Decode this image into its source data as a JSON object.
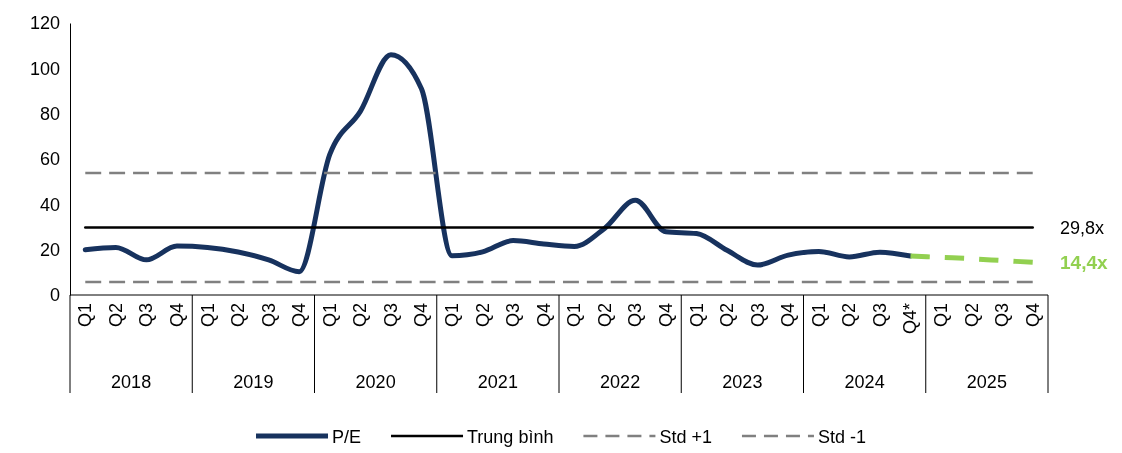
{
  "chart_data": {
    "type": "line",
    "categories": [
      "Q1",
      "Q2",
      "Q3",
      "Q4",
      "Q1",
      "Q2",
      "Q3",
      "Q4",
      "Q1",
      "Q2",
      "Q3",
      "Q4",
      "Q1",
      "Q2",
      "Q3",
      "Q4",
      "Q1",
      "Q2",
      "Q3",
      "Q4",
      "Q1",
      "Q2",
      "Q3",
      "Q4",
      "Q1",
      "Q2",
      "Q3",
      "Q4*",
      "Q1",
      "Q2",
      "Q3",
      "Q4"
    ],
    "series": [
      {
        "name": "P/E",
        "color": "#17325e",
        "line_style": "solid",
        "values": [
          20,
          21,
          15.5,
          21.6,
          21,
          19,
          15.5,
          10.3,
          62,
          81,
          106,
          91,
          17.3,
          19,
          24,
          22.5,
          21.4,
          29.5,
          41.8,
          27.9,
          27.1,
          19.7,
          13.2,
          17.6,
          19.2,
          16.8,
          18.9,
          17.2,
          null,
          null,
          null,
          null
        ]
      },
      {
        "name": "Trung bình",
        "color": "#000000",
        "line_style": "solid",
        "values": [
          29.8,
          29.8,
          29.8,
          29.8,
          29.8,
          29.8,
          29.8,
          29.8,
          29.8,
          29.8,
          29.8,
          29.8,
          29.8,
          29.8,
          29.8,
          29.8,
          29.8,
          29.8,
          29.8,
          29.8,
          29.8,
          29.8,
          29.8,
          29.8,
          29.8,
          29.8,
          29.8,
          29.8,
          29.8,
          29.8,
          29.8,
          29.8
        ],
        "value_labels": [
          null,
          null,
          null,
          null,
          null,
          null,
          null,
          null,
          null,
          null,
          null,
          null,
          null,
          null,
          null,
          null,
          null,
          null,
          null,
          null,
          null,
          null,
          null,
          null,
          null,
          null,
          null,
          null,
          null,
          null,
          null,
          "29,8x"
        ]
      },
      {
        "name": "Std +1",
        "color": "#808080",
        "line_style": "dashed",
        "values": [
          53.8,
          53.8,
          53.8,
          53.8,
          53.8,
          53.8,
          53.8,
          53.8,
          53.8,
          53.8,
          53.8,
          53.8,
          53.8,
          53.8,
          53.8,
          53.8,
          53.8,
          53.8,
          53.8,
          53.8,
          53.8,
          53.8,
          53.8,
          53.8,
          53.8,
          53.8,
          53.8,
          53.8,
          53.8,
          53.8,
          53.8,
          53.8
        ]
      },
      {
        "name": "Std -1",
        "color": "#808080",
        "line_style": "dashed",
        "values": [
          5.7,
          5.7,
          5.7,
          5.7,
          5.7,
          5.7,
          5.7,
          5.7,
          5.7,
          5.7,
          5.7,
          5.7,
          5.7,
          5.7,
          5.7,
          5.7,
          5.7,
          5.7,
          5.7,
          5.7,
          5.7,
          5.7,
          5.7,
          5.7,
          5.7,
          5.7,
          5.7,
          5.7,
          5.7,
          5.7,
          5.7,
          5.7
        ]
      },
      {
        "color": "#92d050",
        "line_style": "dashed",
        "values": [
          null,
          null,
          null,
          null,
          null,
          null,
          null,
          null,
          null,
          null,
          null,
          null,
          null,
          null,
          null,
          null,
          null,
          null,
          null,
          null,
          null,
          null,
          null,
          null,
          null,
          null,
          null,
          17.2,
          16.6,
          16,
          15.2,
          14.4
        ],
        "value_labels": [
          null,
          null,
          null,
          null,
          null,
          null,
          null,
          null,
          null,
          null,
          null,
          null,
          null,
          null,
          null,
          null,
          null,
          null,
          null,
          null,
          null,
          null,
          null,
          null,
          null,
          null,
          null,
          null,
          null,
          null,
          null,
          "14,4x"
        ]
      }
    ],
    "ylim": [
      0,
      120
    ],
    "yticks": [
      0,
      20,
      40,
      60,
      80,
      100,
      120
    ],
    "annotations": [
      "2018",
      "2019",
      "2020",
      "2021",
      "2022",
      "2023",
      "2024",
      "2025"
    ],
    "legend": "bottom"
  }
}
